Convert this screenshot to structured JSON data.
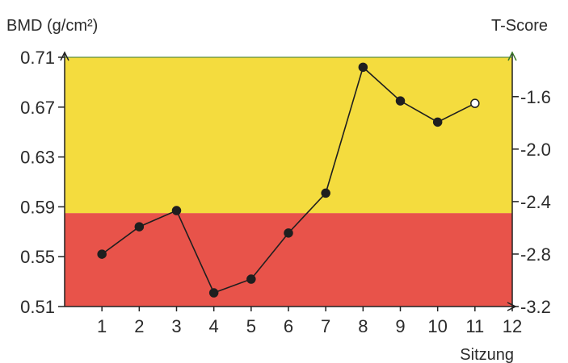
{
  "chart_data": {
    "type": "line",
    "ylabel_left": "BMD (g/cm²)",
    "ylabel_right": "T-Score",
    "xlabel": "Sitzung",
    "ylim_left": [
      0.51,
      0.71
    ],
    "yticks_left": [
      "0.71",
      "0.67",
      "0.63",
      "0.59",
      "0.55",
      "0.51"
    ],
    "yticks_left_values": [
      0.71,
      0.67,
      0.63,
      0.59,
      0.55,
      0.51
    ],
    "ylim_right": [
      -3.2,
      -1.3
    ],
    "yticks_right": [
      "-1.6",
      "-2.0",
      "-2.4",
      "-2.8",
      "-3.2"
    ],
    "yticks_right_values": [
      -1.6,
      -2.0,
      -2.4,
      -2.8,
      -3.2
    ],
    "xlim": [
      0,
      12
    ],
    "xticks": [
      "1",
      "2",
      "3",
      "4",
      "5",
      "6",
      "7",
      "8",
      "9",
      "10",
      "11",
      "12"
    ],
    "xticks_values": [
      1,
      2,
      3,
      4,
      5,
      6,
      7,
      8,
      9,
      10,
      11,
      12
    ],
    "bands": [
      {
        "name": "red",
        "from": 0.51,
        "to": 0.585,
        "color": "#e8534a"
      },
      {
        "name": "yellow",
        "from": 0.585,
        "to": 0.71,
        "color": "#f4dc3e"
      }
    ],
    "series": [
      {
        "x": [
          1,
          2,
          3,
          4,
          5,
          6,
          7,
          8,
          9,
          10,
          11
        ],
        "values": [
          0.552,
          0.574,
          0.587,
          0.521,
          0.532,
          0.569,
          0.601,
          0.702,
          0.675,
          0.658,
          0.673
        ],
        "last_point_open": true,
        "color": "#1f1f1f"
      }
    ],
    "grid": false
  }
}
